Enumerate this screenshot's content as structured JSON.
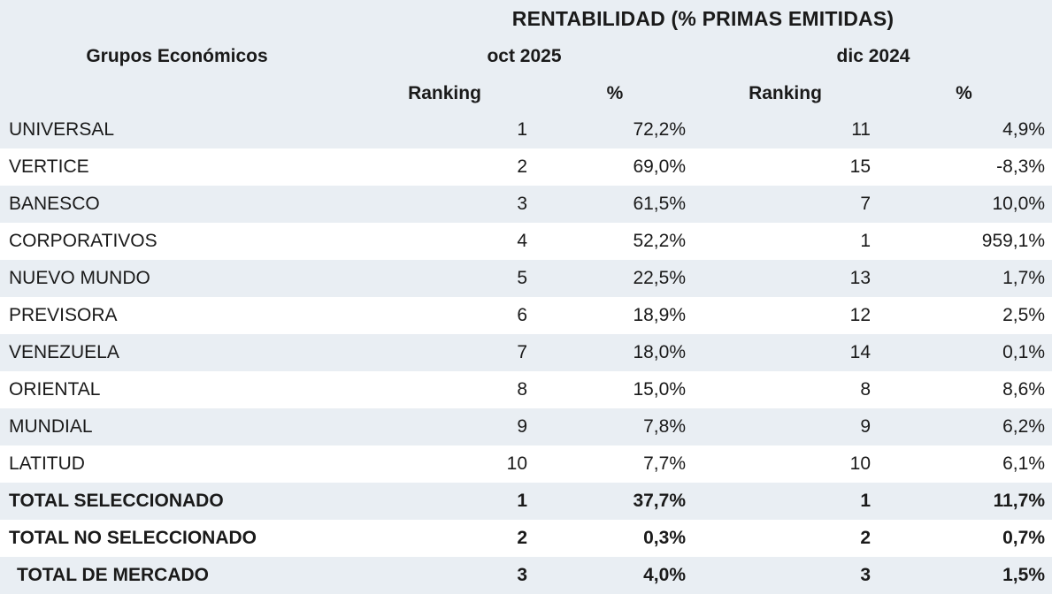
{
  "title": "RENTABILIDAD (% PRIMAS EMITIDAS)",
  "group_column_header": "Grupos Económicos",
  "period_headers": {
    "oct": "oct 2025",
    "dic": "dic 2024"
  },
  "sub_headers": {
    "rank_oct": "Ranking",
    "pct_oct": "%",
    "rank_dic": "Ranking",
    "pct_dic": "%"
  },
  "rows": [
    {
      "label": "UNIVERSAL",
      "values": [
        "1",
        "72,2%",
        "11",
        "4,9%"
      ]
    },
    {
      "label": "VERTICE",
      "values": [
        "2",
        "69,0%",
        "15",
        "-8,3%"
      ]
    },
    {
      "label": "BANESCO",
      "values": [
        "3",
        "61,5%",
        "7",
        "10,0%"
      ]
    },
    {
      "label": "CORPORATIVOS",
      "values": [
        "4",
        "52,2%",
        "1",
        "959,1%"
      ]
    },
    {
      "label": "NUEVO MUNDO",
      "values": [
        "5",
        "22,5%",
        "13",
        "1,7%"
      ]
    },
    {
      "label": "PREVISORA",
      "values": [
        "6",
        "18,9%",
        "12",
        "2,5%"
      ]
    },
    {
      "label": "VENEZUELA",
      "values": [
        "7",
        "18,0%",
        "14",
        "0,1%"
      ]
    },
    {
      "label": "ORIENTAL",
      "values": [
        "8",
        "15,0%",
        "8",
        "8,6%"
      ]
    },
    {
      "label": "MUNDIAL",
      "values": [
        "9",
        "7,8%",
        "9",
        "6,2%"
      ]
    },
    {
      "label": "LATITUD",
      "values": [
        "10",
        "7,7%",
        "10",
        "6,1%"
      ]
    },
    {
      "label": "TOTAL SELECCIONADO",
      "values": [
        "1",
        "37,7%",
        "1",
        "11,7%"
      ]
    },
    {
      "label": "TOTAL NO SELECCIONADO",
      "values": [
        "2",
        "0,3%",
        "2",
        "0,7%"
      ]
    },
    {
      "label": "TOTAL DE MERCADO",
      "values": [
        "3",
        "4,0%",
        "3",
        "1,5%"
      ]
    }
  ],
  "colors": {
    "band": "#e9eef3",
    "row_white": "#ffffff",
    "text": "#1a1a1a",
    "bottom_border": "#a3a9ae"
  }
}
